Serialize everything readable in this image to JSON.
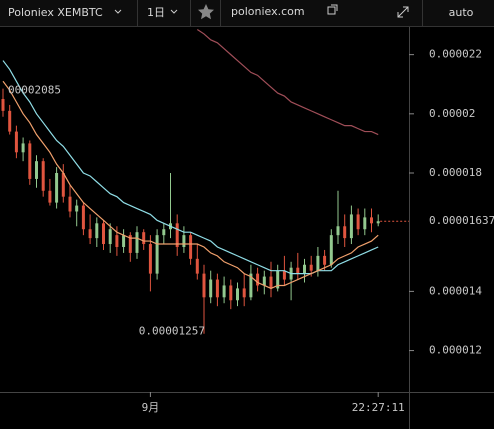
{
  "toolbar": {
    "symbol": "Poloniex XEMBTC",
    "interval": "1日",
    "site": "poloniex.com",
    "scale_mode": "auto"
  },
  "chart_data": {
    "type": "candlestick",
    "categories": [
      null,
      null,
      null,
      null,
      null,
      null,
      null,
      null,
      null,
      null,
      null,
      null,
      null,
      null,
      null,
      null,
      null,
      null,
      null,
      null,
      null,
      null,
      "9月",
      null,
      null,
      null,
      null,
      null,
      null,
      null,
      null,
      null,
      null,
      null,
      null,
      null,
      null,
      null,
      null,
      null,
      null,
      null,
      null,
      null,
      null,
      null,
      null,
      null,
      null,
      null,
      null,
      null,
      null,
      null,
      null,
      null,
      "22:27:11"
    ],
    "open": [
      2.05e-05,
      2.01e-05,
      1.94e-05,
      1.87e-05,
      1.9e-05,
      1.78e-05,
      1.84e-05,
      1.74e-05,
      1.7e-05,
      1.8e-05,
      1.72e-05,
      1.67e-05,
      1.69e-05,
      1.61e-05,
      1.58e-05,
      1.63e-05,
      1.56e-05,
      1.59e-05,
      1.55e-05,
      1.59e-05,
      1.53e-05,
      1.6e-05,
      1.56e-05,
      1.46e-05,
      1.59e-05,
      1.61e-05,
      1.63e-05,
      1.55e-05,
      1.59e-05,
      1.51e-05,
      1.46e-05,
      1.38e-05,
      1.44e-05,
      1.38e-05,
      1.42e-05,
      1.37e-05,
      1.41e-05,
      1.38e-05,
      1.46e-05,
      1.42e-05,
      1.45e-05,
      1.41e-05,
      1.47e-05,
      1.44e-05,
      1.48e-05,
      1.46e-05,
      1.49e-05,
      1.47e-05,
      1.52e-05,
      1.49e-05,
      1.59e-05,
      1.62e-05,
      1.58e-05,
      1.66e-05,
      1.61e-05,
      1.65e-05,
      1.63e-05
    ],
    "high": [
      2.085e-05,
      2.03e-05,
      1.96e-05,
      1.92e-05,
      1.91e-05,
      1.86e-05,
      1.85e-05,
      1.78e-05,
      1.82e-05,
      1.83e-05,
      1.76e-05,
      1.71e-05,
      1.7e-05,
      1.66e-05,
      1.65e-05,
      1.64e-05,
      1.63e-05,
      1.62e-05,
      1.61e-05,
      1.6e-05,
      1.62e-05,
      1.61e-05,
      1.59e-05,
      1.61e-05,
      1.63e-05,
      1.8e-05,
      1.66e-05,
      1.62e-05,
      1.6e-05,
      1.56e-05,
      1.49e-05,
      1.47e-05,
      1.46e-05,
      1.45e-05,
      1.44e-05,
      1.43e-05,
      1.46e-05,
      1.49e-05,
      1.48e-05,
      1.47e-05,
      1.5e-05,
      1.49e-05,
      1.52e-05,
      1.5e-05,
      1.53e-05,
      1.51e-05,
      1.52e-05,
      1.55e-05,
      1.54e-05,
      1.61e-05,
      1.74e-05,
      1.66e-05,
      1.69e-05,
      1.68e-05,
      1.68e-05,
      1.68e-05,
      1.66e-05
    ],
    "low": [
      1.99e-05,
      1.93e-05,
      1.85e-05,
      1.84e-05,
      1.76e-05,
      1.75e-05,
      1.72e-05,
      1.69e-05,
      1.68e-05,
      1.7e-05,
      1.65e-05,
      1.62e-05,
      1.59e-05,
      1.56e-05,
      1.55e-05,
      1.54e-05,
      1.53e-05,
      1.52e-05,
      1.53e-05,
      1.5e-05,
      1.51e-05,
      1.54e-05,
      1.4e-05,
      1.44e-05,
      1.56e-05,
      1.58e-05,
      1.52e-05,
      1.53e-05,
      1.49e-05,
      1.44e-05,
      1.257e-05,
      1.36e-05,
      1.35e-05,
      1.36e-05,
      1.34e-05,
      1.35e-05,
      1.35e-05,
      1.37e-05,
      1.4e-05,
      1.39e-05,
      1.38e-05,
      1.4e-05,
      1.42e-05,
      1.37e-05,
      1.44e-05,
      1.43e-05,
      1.45e-05,
      1.45e-05,
      1.47e-05,
      1.48e-05,
      1.56e-05,
      1.55e-05,
      1.56e-05,
      1.59e-05,
      1.59e-05,
      1.6e-05,
      1.62e-05
    ],
    "close": [
      2.01e-05,
      1.94e-05,
      1.87e-05,
      1.9e-05,
      1.78e-05,
      1.84e-05,
      1.74e-05,
      1.7e-05,
      1.8e-05,
      1.72e-05,
      1.67e-05,
      1.69e-05,
      1.61e-05,
      1.58e-05,
      1.63e-05,
      1.56e-05,
      1.61e-05,
      1.55e-05,
      1.59e-05,
      1.53e-05,
      1.6e-05,
      1.56e-05,
      1.46e-05,
      1.59e-05,
      1.61e-05,
      1.63e-05,
      1.55e-05,
      1.59e-05,
      1.51e-05,
      1.46e-05,
      1.38e-05,
      1.44e-05,
      1.38e-05,
      1.42e-05,
      1.37e-05,
      1.41e-05,
      1.38e-05,
      1.46e-05,
      1.42e-05,
      1.45e-05,
      1.41e-05,
      1.47e-05,
      1.44e-05,
      1.48e-05,
      1.46e-05,
      1.49e-05,
      1.47e-05,
      1.52e-05,
      1.49e-05,
      1.59e-05,
      1.62e-05,
      1.58e-05,
      1.66e-05,
      1.61e-05,
      1.65e-05,
      1.63e-05,
      1.637e-05
    ],
    "up_color": "#93c98f",
    "down_color": "#e0553f",
    "lines": [
      {
        "color": "#8fdde6",
        "values": [
          2.18e-05,
          2.15e-05,
          2.11e-05,
          2.07e-05,
          2.04e-05,
          2e-05,
          1.97e-05,
          1.94e-05,
          1.91e-05,
          1.89e-05,
          1.86e-05,
          1.83e-05,
          1.8e-05,
          1.79e-05,
          1.77e-05,
          1.75e-05,
          1.73e-05,
          1.72e-05,
          1.7e-05,
          1.69e-05,
          1.68e-05,
          1.67e-05,
          1.66e-05,
          1.64e-05,
          1.63e-05,
          1.62e-05,
          1.61e-05,
          1.6e-05,
          1.6e-05,
          1.59e-05,
          1.58e-05,
          1.57e-05,
          1.55e-05,
          1.54e-05,
          1.53e-05,
          1.52e-05,
          1.51e-05,
          1.5e-05,
          1.49e-05,
          1.48e-05,
          1.47e-05,
          1.47e-05,
          1.47e-05,
          1.46e-05,
          1.46e-05,
          1.46e-05,
          1.46e-05,
          1.47e-05,
          1.47e-05,
          1.47e-05,
          1.49e-05,
          1.5e-05,
          1.51e-05,
          1.52e-05,
          1.53e-05,
          1.54e-05,
          1.55e-05
        ]
      },
      {
        "color": "#f0a06c",
        "values": [
          2.11e-05,
          2.08e-05,
          2.04e-05,
          2e-05,
          1.97e-05,
          1.93e-05,
          1.9e-05,
          1.87e-05,
          1.83e-05,
          1.8e-05,
          1.76e-05,
          1.73e-05,
          1.7e-05,
          1.68e-05,
          1.66e-05,
          1.64e-05,
          1.62e-05,
          1.6e-05,
          1.59e-05,
          1.58e-05,
          1.58e-05,
          1.57e-05,
          1.57e-05,
          1.56e-05,
          1.56e-05,
          1.56e-05,
          1.56e-05,
          1.56e-05,
          1.56e-05,
          1.56e-05,
          1.55e-05,
          1.53e-05,
          1.52e-05,
          1.5e-05,
          1.49e-05,
          1.48e-05,
          1.46e-05,
          1.45e-05,
          1.43e-05,
          1.42e-05,
          1.41e-05,
          1.42e-05,
          1.42e-05,
          1.43e-05,
          1.44e-05,
          1.45e-05,
          1.46e-05,
          1.47e-05,
          1.48e-05,
          1.49e-05,
          1.51e-05,
          1.52e-05,
          1.53e-05,
          1.55e-05,
          1.56e-05,
          1.57e-05,
          1.59e-05
        ]
      },
      {
        "color": "#a04e58",
        "values": [
          null,
          null,
          null,
          null,
          null,
          null,
          null,
          null,
          null,
          null,
          null,
          null,
          null,
          null,
          null,
          null,
          null,
          null,
          null,
          null,
          null,
          null,
          null,
          null,
          null,
          null,
          null,
          null,
          null,
          2.285e-05,
          2.27e-05,
          2.25e-05,
          2.24e-05,
          2.22e-05,
          2.2e-05,
          2.18e-05,
          2.16e-05,
          2.14e-05,
          2.13e-05,
          2.11e-05,
          2.09e-05,
          2.07e-05,
          2.06e-05,
          2.04e-05,
          2.03e-05,
          2.02e-05,
          2.01e-05,
          2e-05,
          1.99e-05,
          1.98e-05,
          1.97e-05,
          1.96e-05,
          1.96e-05,
          1.95e-05,
          1.94e-05,
          1.94e-05,
          1.93e-05
        ]
      }
    ],
    "annotations": [
      "00002085",
      "0.00001257"
    ],
    "last_price_label": "0.00001637",
    "ylim": [
      1.06e-05,
      2.29e-05
    ],
    "yticks": [
      1.2e-05,
      1.4e-05,
      1.8e-05,
      2e-05,
      2.2e-05
    ],
    "grid": false
  }
}
